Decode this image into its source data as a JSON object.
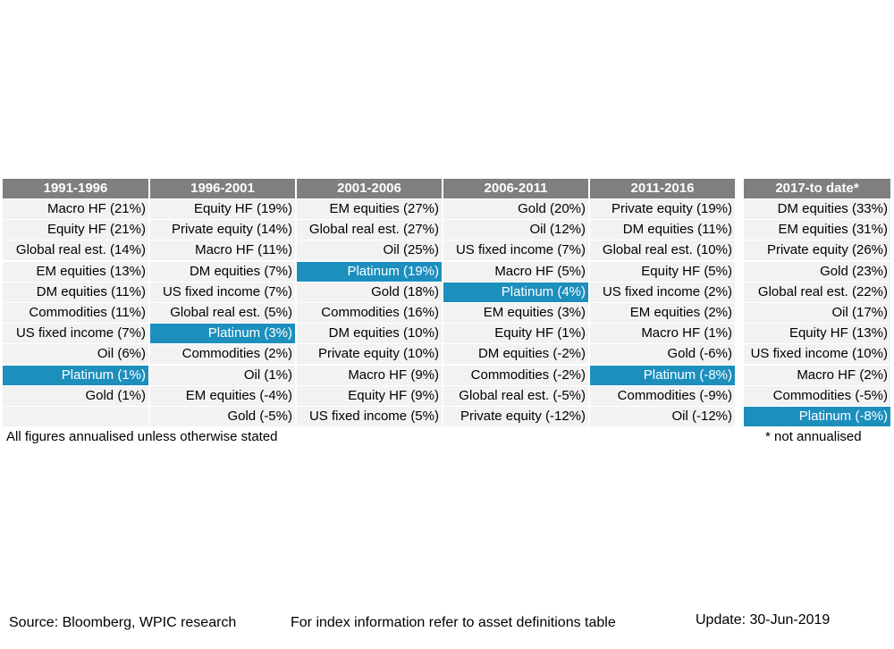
{
  "chart_data": {
    "type": "table",
    "highlight_asset": "Platinum",
    "colors": {
      "header_bg": "#7f7f7f",
      "cell_bg": "#f2f2f2",
      "highlight_bg": "#1d8fbd"
    },
    "columns": [
      {
        "header": "1991-1996",
        "rows": [
          "Macro HF (21%)",
          "Equity HF (21%)",
          "Global real est. (14%)",
          "EM equities (13%)",
          "DM equities (11%)",
          "Commodities (11%)",
          "US fixed income (7%)",
          "Oil (6%)",
          "Platinum (1%)",
          "Gold (1%)",
          ""
        ]
      },
      {
        "header": "1996-2001",
        "rows": [
          "Equity HF (19%)",
          "Private equity (14%)",
          "Macro HF (11%)",
          "DM equities (7%)",
          "US fixed income (7%)",
          "Global real est. (5%)",
          "Platinum (3%)",
          "Commodities (2%)",
          "Oil (1%)",
          "EM equities (-4%)",
          "Gold (-5%)"
        ]
      },
      {
        "header": "2001-2006",
        "rows": [
          "EM equities (27%)",
          "Global real est. (27%)",
          "Oil (25%)",
          "Platinum (19%)",
          "Gold (18%)",
          "Commodities (16%)",
          "DM equities (10%)",
          "Private equity (10%)",
          "Macro HF (9%)",
          "Equity HF (9%)",
          "US fixed income (5%)"
        ]
      },
      {
        "header": "2006-2011",
        "rows": [
          "Gold (20%)",
          "Oil (12%)",
          "US fixed income (7%)",
          "Macro HF (5%)",
          "Platinum (4%)",
          "EM equities (3%)",
          "Equity HF (1%)",
          "DM equities (-2%)",
          "Commodities (-2%)",
          "Global real est. (-5%)",
          "Private equity (-12%)"
        ]
      },
      {
        "header": "2011-2016",
        "rows": [
          "Private equity (19%)",
          "DM equities (11%)",
          "Global real est. (10%)",
          "Equity HF (5%)",
          "US fixed income (2%)",
          "EM equities (2%)",
          "Macro HF (1%)",
          "Gold (-6%)",
          "Platinum (-8%)",
          "Commodities (-9%)",
          "Oil (-12%)"
        ]
      },
      {
        "header": "2017-to date*",
        "rows": [
          "DM equities (33%)",
          "EM equities (31%)",
          "Private equity (26%)",
          "Gold (23%)",
          "Global real est. (22%)",
          "Oil (17%)",
          "Equity HF (13%)",
          "US fixed income (10%)",
          "Macro HF (2%)",
          "Commodities (-5%)",
          "Platinum (-8%)"
        ]
      }
    ]
  },
  "notes": {
    "annualised": "All figures annualised unless otherwise stated",
    "not_annualised": "* not annualised"
  },
  "footer": {
    "source": "Source: Bloomberg, WPIC research",
    "index_info": "For index information refer to asset definitions table",
    "update": "Update: 30-Jun-2019"
  }
}
